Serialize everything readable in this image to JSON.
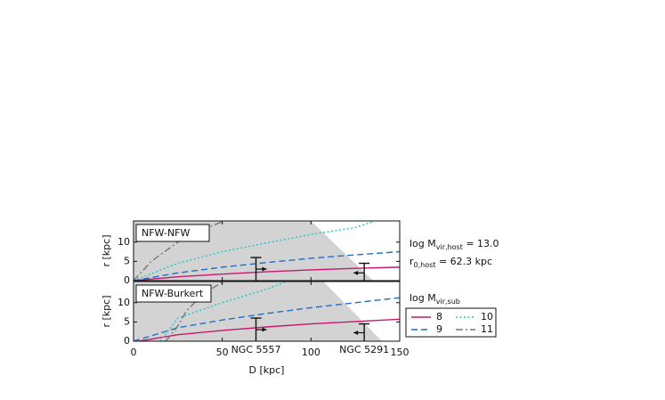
{
  "chart_data": [
    {
      "type": "line",
      "label": "NFW-NFW",
      "ylabel": "r [kpc]",
      "xlim": [
        0,
        150
      ],
      "ylim": [
        0,
        15.5
      ],
      "xticks": [
        0,
        50,
        100,
        150
      ],
      "yticks": [
        0,
        5,
        10
      ],
      "shade": {
        "x": [
          0,
          0,
          100,
          135
        ],
        "values": [
          0,
          15.5,
          15.5,
          0
        ]
      },
      "series": [
        {
          "name": "8",
          "color": "#c8176e",
          "dash": "solid",
          "x": [
            0,
            25,
            50,
            75,
            100,
            125,
            150
          ],
          "values": [
            0,
            1,
            1.7,
            2.3,
            2.8,
            3.2,
            3.5
          ]
        },
        {
          "name": "9",
          "color": "#1f6fc5",
          "dash": "dashed",
          "x": [
            0,
            25,
            50,
            75,
            100,
            125,
            150
          ],
          "values": [
            0,
            2,
            3.5,
            4.7,
            5.8,
            6.7,
            7.5
          ]
        },
        {
          "name": "10",
          "color": "#1fc8c8",
          "dash": "dotted",
          "x": [
            0,
            25,
            50,
            75,
            100,
            125,
            135
          ],
          "values": [
            0,
            4.5,
            7.5,
            9.8,
            12,
            13.8,
            15.3
          ]
        },
        {
          "name": "11",
          "color": "#777777",
          "dash": "dashdot",
          "x": [
            0,
            10,
            25,
            40,
            50
          ],
          "values": [
            0,
            5,
            10,
            13.5,
            15.3
          ]
        }
      ],
      "markers": [
        {
          "x": 69,
          "upper": 6,
          "arrow": 3,
          "direction": "right"
        },
        {
          "x": 130,
          "upper": 4.5,
          "arrow": 2,
          "direction": "left"
        }
      ]
    },
    {
      "type": "line",
      "label": "NFW-Burkert",
      "ylabel": "r [kpc]",
      "xlabel": "D [kpc]",
      "xlim": [
        0,
        150
      ],
      "ylim": [
        0,
        15.5
      ],
      "xticks": [
        0,
        50,
        100,
        150
      ],
      "yticks": [
        0,
        5,
        10
      ],
      "shade": {
        "x": [
          0,
          0,
          107,
          140
        ],
        "values": [
          0,
          15.5,
          15.5,
          0
        ]
      },
      "series": [
        {
          "name": "8",
          "color": "#c8176e",
          "dash": "solid",
          "x": [
            3,
            25,
            50,
            75,
            100,
            125,
            150
          ],
          "values": [
            0,
            1.7,
            2.8,
            3.7,
            4.5,
            5.1,
            5.7
          ]
        },
        {
          "name": "9",
          "color": "#1f6fc5",
          "dash": "dashed",
          "x": [
            0,
            25,
            50,
            75,
            100,
            125,
            150
          ],
          "values": [
            0,
            3.5,
            5.5,
            7.2,
            8.7,
            10,
            11.3
          ]
        },
        {
          "name": "10",
          "color": "#1fc8c8",
          "dash": "dotted",
          "x": [
            15,
            25,
            50,
            75,
            85
          ],
          "values": [
            0,
            6,
            10,
            13.5,
            15.3
          ]
        },
        {
          "name": "11",
          "color": "#777777",
          "dash": "dashdot",
          "x": [
            18,
            20,
            25,
            30,
            40,
            50
          ],
          "values": [
            0,
            1,
            4,
            8,
            12.5,
            15.3
          ]
        }
      ],
      "markers": [
        {
          "name": "NGC 5557",
          "x": 69,
          "upper": 6,
          "arrow": 3,
          "direction": "right"
        },
        {
          "name": "NGC 5291",
          "x": 130,
          "upper": 4.5,
          "arrow": 2.2,
          "direction": "left"
        }
      ]
    }
  ],
  "host": {
    "mass": [
      "log M",
      "vir,host",
      " = 13.0"
    ],
    "radius": [
      "r",
      "0,host",
      " = 62.3 kpc"
    ]
  },
  "legend_title": [
    "log M",
    "vir,sub"
  ]
}
